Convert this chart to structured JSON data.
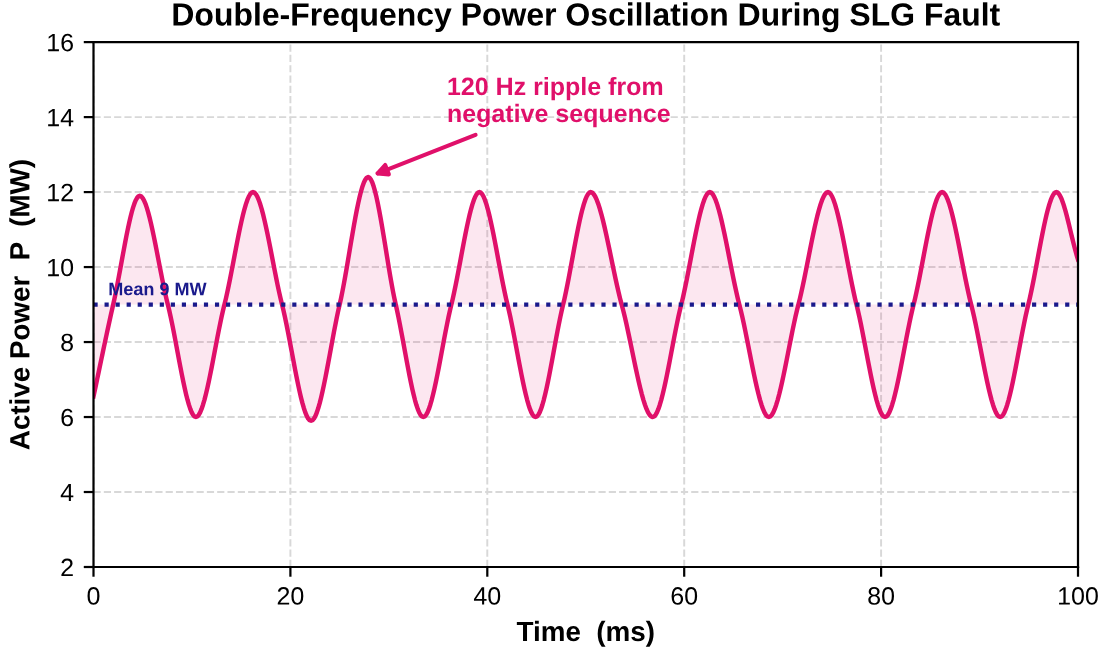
{
  "chart_data": {
    "type": "line",
    "title": "Double-Frequency Power Oscillation During SLG Fault",
    "xlabel": "Time  (ms)",
    "ylabel": "Active Power  P  (MW)",
    "series": [
      {
        "color": "#e0106a",
        "x": [
          0,
          2.0,
          4.7,
          7.55,
          10.4,
          13.3,
          16.2,
          19.15,
          22.1,
          25.0,
          27.9,
          30.7,
          33.5,
          36.35,
          39.2,
          42.05,
          44.9,
          47.7,
          50.5,
          53.65,
          56.8,
          59.7,
          62.6,
          65.6,
          68.6,
          71.6,
          74.6,
          77.5,
          80.4,
          83.3,
          86.2,
          89.15,
          92.1,
          94.95,
          97.8,
          100
        ],
        "values": [
          6.55,
          9,
          11.9,
          9,
          6.0,
          9,
          12.0,
          9,
          5.9,
          9,
          12.4,
          9,
          6.0,
          9,
          12.0,
          9,
          6.0,
          9,
          12.0,
          9,
          6.0,
          9,
          12.0,
          9,
          6.0,
          9,
          12.0,
          9,
          6.0,
          9,
          12.0,
          9,
          6.0,
          9,
          12.0,
          10.2
        ]
      }
    ],
    "ref_lines": [
      {
        "axis": "y",
        "value": 9,
        "label": "Mean 9 MW",
        "color": "#1a1a8c",
        "line_style": "dotted"
      }
    ],
    "annotations": [
      {
        "text": "120 Hz ripple from\nnegative sequence",
        "x": 27.9,
        "y": 12.4
      }
    ],
    "xlim": [
      0,
      100
    ],
    "xticks": [
      0,
      20,
      40,
      60,
      80,
      100
    ],
    "ylim": [
      2,
      16
    ],
    "yticks": [
      2,
      4,
      6,
      8,
      10,
      12,
      14,
      16
    ],
    "grid": true,
    "legend": false,
    "marker": "none",
    "line_style": "solid"
  }
}
